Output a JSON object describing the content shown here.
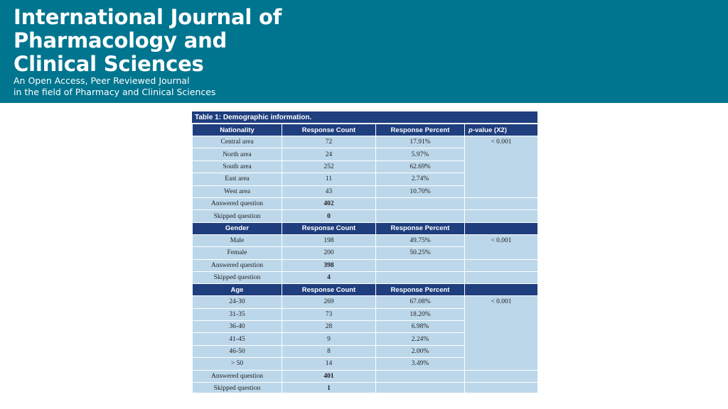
{
  "banner": {
    "title_lines": [
      "International Journal of",
      "Pharmacology and",
      "Clinical Sciences"
    ],
    "subtitle_lines": [
      "An Open Access, Peer Reviewed Journal",
      "in the field of Pharmacy and Clinical Sciences"
    ],
    "background_color": "#00758f"
  },
  "table": {
    "caption": "Table 1: Demographic information.",
    "header_color": "#1e3e7e",
    "cell_color": "#bcd7ea",
    "pvalue_header_prefix": "p",
    "pvalue_header_suffix": "-value (X2)",
    "sections": [
      {
        "header": [
          "Nationality",
          "Response Count",
          "Response Percent"
        ],
        "pvalue": "< 0.001",
        "rows": [
          {
            "label": "Central area",
            "count": "72",
            "percent": "17.91%"
          },
          {
            "label": "North area",
            "count": "24",
            "percent": "5.97%"
          },
          {
            "label": "South area",
            "count": "252",
            "percent": "62.69%"
          },
          {
            "label": "East area",
            "count": "11",
            "percent": "2.74%"
          },
          {
            "label": "West area",
            "count": "43",
            "percent": "10.70%"
          }
        ],
        "answered": {
          "label": "Answered question",
          "count": "402"
        },
        "skipped": {
          "label": "Skipped question",
          "count": "0"
        }
      },
      {
        "header": [
          "Gender",
          "Response Count",
          "Response Percent"
        ],
        "pvalue": "< 0.001",
        "rows": [
          {
            "label": "Male",
            "count": "198",
            "percent": "49.75%"
          },
          {
            "label": "Female",
            "count": "200",
            "percent": "50.25%"
          }
        ],
        "answered": {
          "label": "Answered question",
          "count": "398"
        },
        "skipped": {
          "label": "Skipped question",
          "count": "4"
        }
      },
      {
        "header": [
          "Age",
          "Response Count",
          "Response Percent"
        ],
        "pvalue": "< 0.001",
        "rows": [
          {
            "label": "24-30",
            "count": "269",
            "percent": "67.08%"
          },
          {
            "label": "31-35",
            "count": "73",
            "percent": "18.20%"
          },
          {
            "label": "36-40",
            "count": "28",
            "percent": "6.98%"
          },
          {
            "label": "41-45",
            "count": "9",
            "percent": "2.24%"
          },
          {
            "label": "46-50",
            "count": "8",
            "percent": "2.00%"
          },
          {
            "label": "> 50",
            "count": "14",
            "percent": "3.49%"
          }
        ],
        "answered": {
          "label": "Answered question",
          "count": "401"
        },
        "skipped": {
          "label": "Skipped question",
          "count": "1"
        }
      }
    ]
  }
}
